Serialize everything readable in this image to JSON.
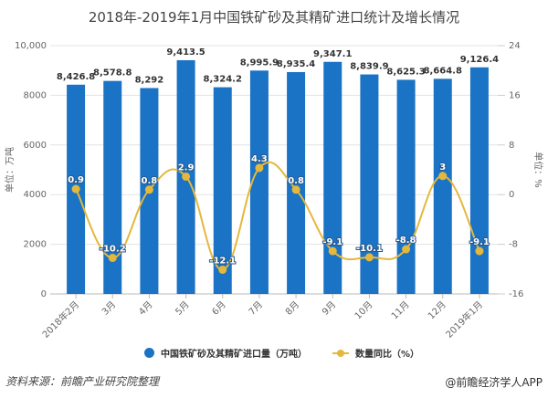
{
  "chart_data": {
    "type": "bar+line",
    "title": "2018年-2019年1月中国铁矿砂及其精矿进口统计及增长情况",
    "categories": [
      "2018年2月",
      "3月",
      "4月",
      "5月",
      "6月",
      "7月",
      "8月",
      "9月",
      "10月",
      "11月",
      "12月",
      "2019年1月"
    ],
    "series": [
      {
        "name": "中国铁矿砂及其精矿进口量（万吨）",
        "type": "bar",
        "axis": "left",
        "color": "#1a73c4",
        "values": [
          8426.8,
          8578.8,
          8292,
          9413.5,
          8324.2,
          8995.9,
          8935.4,
          9347.1,
          8839.9,
          8625.3,
          8664.8,
          9126.4
        ],
        "labels": [
          "8,426.8",
          "8,578.8",
          "8,292",
          "9,413.5",
          "8,324.2",
          "8,995.9",
          "8,935.4",
          "9,347.1",
          "8,839.9",
          "8,625.3",
          "8,664.8",
          "9,126.4"
        ]
      },
      {
        "name": "数量同比（%）",
        "type": "line",
        "axis": "right",
        "color": "#e5b83c",
        "values": [
          0.9,
          -10.2,
          0.8,
          2.9,
          -12.1,
          4.3,
          0.8,
          -9.1,
          -10.1,
          -8.8,
          3,
          -9.1
        ],
        "labels": [
          "0.9",
          "-10.2",
          "0.8",
          "2.9",
          "-12.1",
          "4.3",
          "0.8",
          "-9.1",
          "-10.1",
          "-8.8",
          "3",
          "-9.1"
        ]
      }
    ],
    "ylabel": "单位：万吨",
    "y2label": "单位：%",
    "ylim": [
      0,
      10000
    ],
    "y2lim": [
      -16,
      24
    ],
    "yticks": [
      0,
      2000,
      4000,
      6000,
      8000,
      10000
    ],
    "ytick_labels": [
      "0",
      "2000",
      "4000",
      "6000",
      "8000",
      "10,000"
    ],
    "y2ticks": [
      -16,
      -8,
      0,
      8,
      16,
      24
    ],
    "y2tick_labels": [
      "-16",
      "-8",
      "0",
      "8",
      "16",
      "24"
    ],
    "grid": true,
    "legend_position": "bottom"
  },
  "legend": {
    "bar_label": "中国铁矿砂及其精矿进口量（万吨）",
    "line_label": "数量同比（%）"
  },
  "footer": {
    "source": "资料来源：前瞻产业研究院整理",
    "brand": "@前瞻经济学人APP"
  }
}
